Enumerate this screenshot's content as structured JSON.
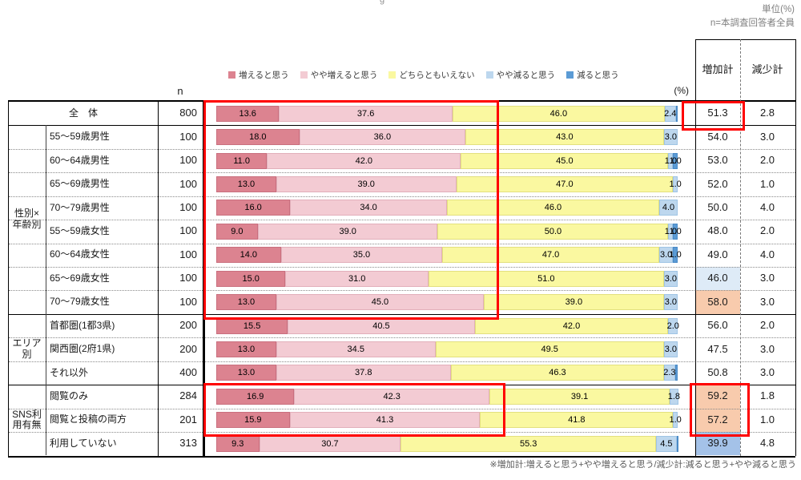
{
  "meta": {
    "title_fragment": "g",
    "unit_note": "単位(%)",
    "n_note": "n=本調査回答者全員",
    "footnote": "※増加計:増えると思う+やや増えると思う/減少計:減ると思う+やや減ると思う"
  },
  "columns": {
    "n_label": "n",
    "percent_label": "(%)",
    "increase_total": "増加計",
    "decrease_total": "減少計"
  },
  "legend": {
    "items": [
      {
        "key": "increase",
        "label": "増えると思う",
        "color": "#DC8390",
        "border": "#C96F7E"
      },
      {
        "key": "slight-increase",
        "label": "やや増えると思う",
        "color": "#F3CBD3",
        "border": "#E2AFBA"
      },
      {
        "key": "neutral",
        "label": "どちらともいえない",
        "color": "#FAF8A0",
        "border": "#E3E07E"
      },
      {
        "key": "slight-decrease",
        "label": "やや減ると思う",
        "color": "#BDD7EE",
        "border": "#9FC4E4"
      },
      {
        "key": "decrease",
        "label": "減ると思う",
        "color": "#5B9BD5",
        "border": "#4A8AC6"
      }
    ]
  },
  "cell_bg": {
    "orange": "#F8CBAD",
    "lightblue": "#DEEBF7",
    "blue": "#A4C2E8"
  },
  "highlight_color": "#FF0000",
  "table": {
    "groups": [
      {
        "label": "性別×\n年齢別",
        "start": 1,
        "span": 8
      },
      {
        "label": "エリア\n別",
        "start": 9,
        "span": 3
      },
      {
        "label": "SNS利\n用有無",
        "start": 12,
        "span": 3
      }
    ],
    "rows": [
      {
        "label": "全　体",
        "merged": true,
        "n": "800",
        "values": [
          13.6,
          37.6,
          46.0,
          2.4,
          0.4
        ],
        "labels": [
          "13.6",
          "37.6",
          "46.0",
          "2.4",
          ""
        ],
        "inc": "51.3",
        "dec": "2.8",
        "inc_bg": ""
      },
      {
        "label": "55〜59歳男性",
        "merged": false,
        "n": "100",
        "values": [
          18.0,
          36.0,
          43.0,
          3.0,
          0
        ],
        "labels": [
          "18.0",
          "36.0",
          "43.0",
          "3.0",
          ""
        ],
        "inc": "54.0",
        "dec": "3.0",
        "inc_bg": ""
      },
      {
        "label": "60〜64歳男性",
        "merged": false,
        "n": "100",
        "values": [
          11.0,
          42.0,
          45.0,
          1.0,
          1.0
        ],
        "labels": [
          "11.0",
          "42.0",
          "45.0",
          "1.0",
          "1.0"
        ],
        "inc": "53.0",
        "dec": "2.0",
        "inc_bg": ""
      },
      {
        "label": "65〜69歳男性",
        "merged": false,
        "n": "100",
        "values": [
          13.0,
          39.0,
          47.0,
          1.0,
          0
        ],
        "labels": [
          "13.0",
          "39.0",
          "47.0",
          "1.0",
          ""
        ],
        "inc": "52.0",
        "dec": "1.0",
        "inc_bg": ""
      },
      {
        "label": "70〜79歳男性",
        "merged": false,
        "n": "100",
        "values": [
          16.0,
          34.0,
          46.0,
          4.0,
          0
        ],
        "labels": [
          "16.0",
          "34.0",
          "46.0",
          "4.0",
          ""
        ],
        "inc": "50.0",
        "dec": "4.0",
        "inc_bg": ""
      },
      {
        "label": "55〜59歳女性",
        "merged": false,
        "n": "100",
        "values": [
          9.0,
          39.0,
          50.0,
          1.0,
          1.0
        ],
        "labels": [
          "9.0",
          "39.0",
          "50.0",
          "1.0",
          "1.0"
        ],
        "inc": "48.0",
        "dec": "2.0",
        "inc_bg": ""
      },
      {
        "label": "60〜64歳女性",
        "merged": false,
        "n": "100",
        "values": [
          14.0,
          35.0,
          47.0,
          3.0,
          1.0
        ],
        "labels": [
          "14.0",
          "35.0",
          "47.0",
          "3.0",
          "1.0"
        ],
        "inc": "49.0",
        "dec": "4.0",
        "inc_bg": ""
      },
      {
        "label": "65〜69歳女性",
        "merged": false,
        "n": "100",
        "values": [
          15.0,
          31.0,
          51.0,
          3.0,
          0
        ],
        "labels": [
          "15.0",
          "31.0",
          "51.0",
          "3.0",
          ""
        ],
        "inc": "46.0",
        "dec": "3.0",
        "inc_bg": "lightblue"
      },
      {
        "label": "70〜79歳女性",
        "merged": false,
        "n": "100",
        "values": [
          13.0,
          45.0,
          39.0,
          3.0,
          0
        ],
        "labels": [
          "13.0",
          "45.0",
          "39.0",
          "3.0",
          ""
        ],
        "inc": "58.0",
        "dec": "3.0",
        "inc_bg": "orange"
      },
      {
        "label": "首都圏(1都3県)",
        "merged": false,
        "n": "200",
        "values": [
          15.5,
          40.5,
          42.0,
          2.0,
          0
        ],
        "labels": [
          "15.5",
          "40.5",
          "42.0",
          "2.0",
          ""
        ],
        "inc": "56.0",
        "dec": "2.0",
        "inc_bg": ""
      },
      {
        "label": "関西圏(2府1県)",
        "merged": false,
        "n": "200",
        "values": [
          13.0,
          34.5,
          49.5,
          3.0,
          0
        ],
        "labels": [
          "13.0",
          "34.5",
          "49.5",
          "3.0",
          ""
        ],
        "inc": "47.5",
        "dec": "3.0",
        "inc_bg": ""
      },
      {
        "label": "それ以外",
        "merged": false,
        "n": "400",
        "values": [
          13.0,
          37.8,
          46.3,
          2.3,
          0.6
        ],
        "labels": [
          "13.0",
          "37.8",
          "46.3",
          "2.3",
          ""
        ],
        "inc": "50.8",
        "dec": "3.0",
        "inc_bg": ""
      },
      {
        "label": "閲覧のみ",
        "merged": false,
        "n": "284",
        "values": [
          16.9,
          42.3,
          39.1,
          1.8,
          0
        ],
        "labels": [
          "16.9",
          "42.3",
          "39.1",
          "1.8",
          ""
        ],
        "inc": "59.2",
        "dec": "1.8",
        "inc_bg": "orange"
      },
      {
        "label": "閲覧と投稿の両方",
        "merged": false,
        "n": "201",
        "values": [
          15.9,
          41.3,
          41.8,
          1.0,
          0
        ],
        "labels": [
          "15.9",
          "41.3",
          "41.8",
          "1.0",
          ""
        ],
        "inc": "57.2",
        "dec": "1.0",
        "inc_bg": "orange"
      },
      {
        "label": "利用していない",
        "merged": false,
        "n": "313",
        "values": [
          9.3,
          30.7,
          55.3,
          4.5,
          0.2
        ],
        "labels": [
          "9.3",
          "30.7",
          "55.3",
          "4.5",
          ""
        ],
        "inc": "39.9",
        "dec": "4.8",
        "inc_bg": "blue"
      }
    ]
  },
  "chart_data": {
    "type": "bar",
    "orientation": "horizontal-stacked",
    "unit": "%",
    "xlim": [
      0,
      100
    ],
    "legend_position": "top",
    "categories": [
      "全体",
      "55〜59歳男性",
      "60〜64歳男性",
      "65〜69歳男性",
      "70〜79歳男性",
      "55〜59歳女性",
      "60〜64歳女性",
      "65〜69歳女性",
      "70〜79歳女性",
      "首都圏(1都3県)",
      "関西圏(2府1県)",
      "それ以外",
      "閲覧のみ",
      "閲覧と投稿の両方",
      "利用していない"
    ],
    "category_groups": [
      "全体",
      "性別×年齢別",
      "性別×年齢別",
      "性別×年齢別",
      "性別×年齢別",
      "性別×年齢別",
      "性別×年齢別",
      "性別×年齢別",
      "性別×年齢別",
      "エリア別",
      "エリア別",
      "エリア別",
      "SNS利用有無",
      "SNS利用有無",
      "SNS利用有無"
    ],
    "n": [
      800,
      100,
      100,
      100,
      100,
      100,
      100,
      100,
      100,
      200,
      200,
      400,
      284,
      201,
      313
    ],
    "series": [
      {
        "name": "増えると思う",
        "values": [
          13.6,
          18.0,
          11.0,
          13.0,
          16.0,
          9.0,
          14.0,
          15.0,
          13.0,
          15.5,
          13.0,
          13.0,
          16.9,
          15.9,
          9.3
        ]
      },
      {
        "name": "やや増えると思う",
        "values": [
          37.6,
          36.0,
          42.0,
          39.0,
          34.0,
          39.0,
          35.0,
          31.0,
          45.0,
          40.5,
          34.5,
          37.8,
          42.3,
          41.3,
          30.7
        ]
      },
      {
        "name": "どちらともいえない",
        "values": [
          46.0,
          43.0,
          45.0,
          47.0,
          46.0,
          50.0,
          47.0,
          51.0,
          39.0,
          42.0,
          49.5,
          46.3,
          39.1,
          41.8,
          55.3
        ]
      },
      {
        "name": "やや減ると思う",
        "values": [
          2.4,
          3.0,
          1.0,
          1.0,
          4.0,
          1.0,
          3.0,
          3.0,
          3.0,
          2.0,
          3.0,
          2.3,
          1.8,
          1.0,
          4.5
        ]
      },
      {
        "name": "減ると思う",
        "values": [
          0.4,
          0.0,
          1.0,
          0.0,
          0.0,
          1.0,
          1.0,
          0.0,
          0.0,
          0.0,
          0.0,
          0.6,
          0.0,
          0.0,
          0.2
        ]
      }
    ],
    "increase_total": [
      51.3,
      54.0,
      53.0,
      52.0,
      50.0,
      48.0,
      49.0,
      46.0,
      58.0,
      56.0,
      47.5,
      50.8,
      59.2,
      57.2,
      39.9
    ],
    "decrease_total": [
      2.8,
      3.0,
      2.0,
      1.0,
      4.0,
      2.0,
      4.0,
      3.0,
      3.0,
      2.0,
      3.0,
      3.0,
      1.8,
      1.0,
      4.8
    ],
    "highlighted_increase_totals": [
      "51.3",
      "59.2",
      "57.2"
    ]
  }
}
